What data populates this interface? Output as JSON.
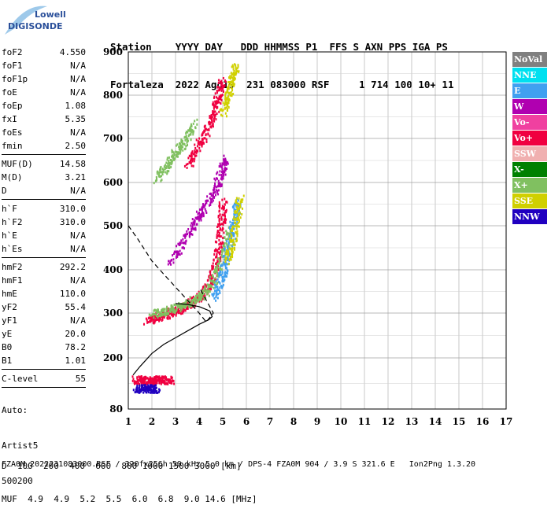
{
  "logo": {
    "line1": "Lowell",
    "line2": "DIGISONDE"
  },
  "header": {
    "labels": "Station    YYYY DAY   DDD HHMMSS P1  FFS S AXN PPS IGA PS",
    "values": "Fortaleza  2022 Ago19  231 083000 RSF     1 714 100 10+ 11"
  },
  "params": {
    "group1": [
      {
        "name": "foF2",
        "value": "4.550"
      },
      {
        "name": "foF1",
        "value": "N/A"
      },
      {
        "name": "foF1p",
        "value": "N/A"
      },
      {
        "name": "foE",
        "value": "N/A"
      },
      {
        "name": "foEp",
        "value": "1.08"
      },
      {
        "name": "fxI",
        "value": "5.35"
      },
      {
        "name": "foEs",
        "value": "N/A"
      },
      {
        "name": "fmin",
        "value": "2.50"
      }
    ],
    "group2": [
      {
        "name": "MUF(D)",
        "value": "14.58"
      },
      {
        "name": "M(D)",
        "value": "3.21"
      },
      {
        "name": "D",
        "value": "N/A"
      }
    ],
    "group3": [
      {
        "name": "h`F",
        "value": "310.0"
      },
      {
        "name": "h`F2",
        "value": "310.0"
      },
      {
        "name": "h`E",
        "value": "N/A"
      },
      {
        "name": "h`Es",
        "value": "N/A"
      }
    ],
    "group4": [
      {
        "name": "hmF2",
        "value": "292.2"
      },
      {
        "name": "hmF1",
        "value": "N/A"
      },
      {
        "name": "hmE",
        "value": "110.0"
      },
      {
        "name": "yF2",
        "value": "55.4"
      },
      {
        "name": "yF1",
        "value": "N/A"
      },
      {
        "name": "yE",
        "value": "20.0"
      },
      {
        "name": "B0",
        "value": "78.2"
      },
      {
        "name": "B1",
        "value": "1.01"
      }
    ],
    "group5": [
      {
        "name": "C-level",
        "value": "55"
      }
    ]
  },
  "auto": {
    "line1": "Auto:",
    "line2": "Artist5",
    "line3": "500200"
  },
  "legend": [
    {
      "label": "NoVal",
      "color": "#808080"
    },
    {
      "label": "NNE",
      "color": "#00e0f0"
    },
    {
      "label": "E",
      "color": "#40a0f0"
    },
    {
      "label": "W",
      "color": "#b000b0"
    },
    {
      "label": "Vo-",
      "color": "#f040a0"
    },
    {
      "label": "Vo+",
      "color": "#f00040"
    },
    {
      "label": "SSW",
      "color": "#f0b0b0"
    },
    {
      "label": "X-",
      "color": "#008000"
    },
    {
      "label": "X+",
      "color": "#80c060"
    },
    {
      "label": "SSE",
      "color": "#d0d000"
    },
    {
      "label": "NNW",
      "color": "#2000c0"
    }
  ],
  "chart_data": {
    "type": "scatter",
    "x_ticks": [
      "1",
      "2",
      "3",
      "4",
      "5",
      "6",
      "7",
      "8",
      "9",
      "10",
      "11",
      "12",
      "13",
      "14",
      "15",
      "16",
      "17"
    ],
    "y_ticks": [
      "80",
      "200",
      "300",
      "400",
      "500",
      "600",
      "700",
      "800",
      "900"
    ],
    "xlim": [
      1,
      17
    ],
    "y_axis_values": [
      80,
      200,
      300,
      400,
      500,
      600,
      700,
      800,
      900
    ],
    "ionogram_traces": [
      {
        "color": "#f00040",
        "points": [
          [
            1.8,
            285
          ],
          [
            2.2,
            292
          ],
          [
            2.6,
            300
          ],
          [
            3.0,
            308
          ],
          [
            3.4,
            318
          ],
          [
            3.8,
            330
          ],
          [
            4.2,
            350
          ],
          [
            4.5,
            380
          ],
          [
            4.7,
            420
          ],
          [
            4.85,
            470
          ],
          [
            4.95,
            520
          ],
          [
            5.0,
            560
          ]
        ]
      },
      {
        "color": "#80c060",
        "points": [
          [
            2.0,
            300
          ],
          [
            2.5,
            305
          ],
          [
            3.0,
            315
          ],
          [
            3.5,
            325
          ],
          [
            4.0,
            340
          ],
          [
            4.4,
            360
          ],
          [
            4.8,
            400
          ],
          [
            5.1,
            450
          ],
          [
            5.3,
            500
          ]
        ]
      },
      {
        "color": "#40a0f0",
        "points": [
          [
            4.6,
            340
          ],
          [
            4.9,
            380
          ],
          [
            5.1,
            420
          ],
          [
            5.3,
            470
          ],
          [
            5.5,
            520
          ],
          [
            5.6,
            560
          ]
        ]
      },
      {
        "color": "#d0d000",
        "points": [
          [
            5.2,
            420
          ],
          [
            5.4,
            470
          ],
          [
            5.6,
            520
          ],
          [
            5.7,
            570
          ]
        ]
      },
      {
        "color": "#b000b0",
        "points": [
          [
            2.8,
            420
          ],
          [
            3.3,
            470
          ],
          [
            3.8,
            510
          ],
          [
            4.2,
            540
          ],
          [
            4.6,
            580
          ],
          [
            4.9,
            620
          ],
          [
            5.1,
            660
          ]
        ]
      },
      {
        "color": "#f00040",
        "points": [
          [
            3.5,
            640
          ],
          [
            3.9,
            680
          ],
          [
            4.3,
            720
          ],
          [
            4.6,
            760
          ],
          [
            4.8,
            800
          ],
          [
            5.0,
            840
          ]
        ]
      },
      {
        "color": "#80c060",
        "points": [
          [
            2.2,
            610
          ],
          [
            2.6,
            640
          ],
          [
            3.0,
            670
          ],
          [
            3.4,
            700
          ],
          [
            3.8,
            740
          ]
        ]
      },
      {
        "color": "#d0d000",
        "points": [
          [
            5.0,
            760
          ],
          [
            5.2,
            800
          ],
          [
            5.4,
            840
          ],
          [
            5.5,
            870
          ]
        ]
      },
      {
        "color": "#f00040",
        "points": [
          [
            1.3,
            150
          ],
          [
            1.6,
            150
          ],
          [
            1.9,
            150
          ],
          [
            2.2,
            150
          ],
          [
            2.5,
            150
          ],
          [
            2.8,
            150
          ]
        ]
      },
      {
        "color": "#2000c0",
        "points": [
          [
            1.3,
            130
          ],
          [
            1.6,
            130
          ],
          [
            1.9,
            130
          ],
          [
            2.2,
            130
          ]
        ]
      }
    ],
    "profile_curve": [
      [
        1.2,
        160
      ],
      [
        1.5,
        180
      ],
      [
        2.0,
        210
      ],
      [
        2.5,
        230
      ],
      [
        3.0,
        245
      ],
      [
        3.5,
        260
      ],
      [
        4.0,
        275
      ],
      [
        4.4,
        285
      ],
      [
        4.55,
        292
      ],
      [
        4.45,
        305
      ],
      [
        4.0,
        315
      ],
      [
        3.5,
        320
      ],
      [
        3.0,
        322
      ]
    ],
    "dashed_curve": [
      [
        1.0,
        500
      ],
      [
        1.4,
        470
      ],
      [
        2.0,
        420
      ],
      [
        2.5,
        390
      ],
      [
        3.0,
        360
      ],
      [
        3.5,
        330
      ],
      [
        4.0,
        300
      ],
      [
        4.3,
        280
      ],
      [
        4.6,
        300
      ],
      [
        4.3,
        330
      ],
      [
        4.0,
        360
      ]
    ]
  },
  "footer": {
    "d_label": "D",
    "d_values": "  100  200  400  600  800 1000 1500 3000 [km]",
    "muf_label": "MUF",
    "muf_values": "  4.9  4.9  5.2  5.5  6.0  6.8  9.0 14.6 [MHz]",
    "file_line": "FZA0M_2022231083000.RSF / 320fx256h 50 kHz 5.0 km / DPS-4 FZA0M 904 / 3.9 S 321.6 E   Ion2Png 1.3.20"
  }
}
